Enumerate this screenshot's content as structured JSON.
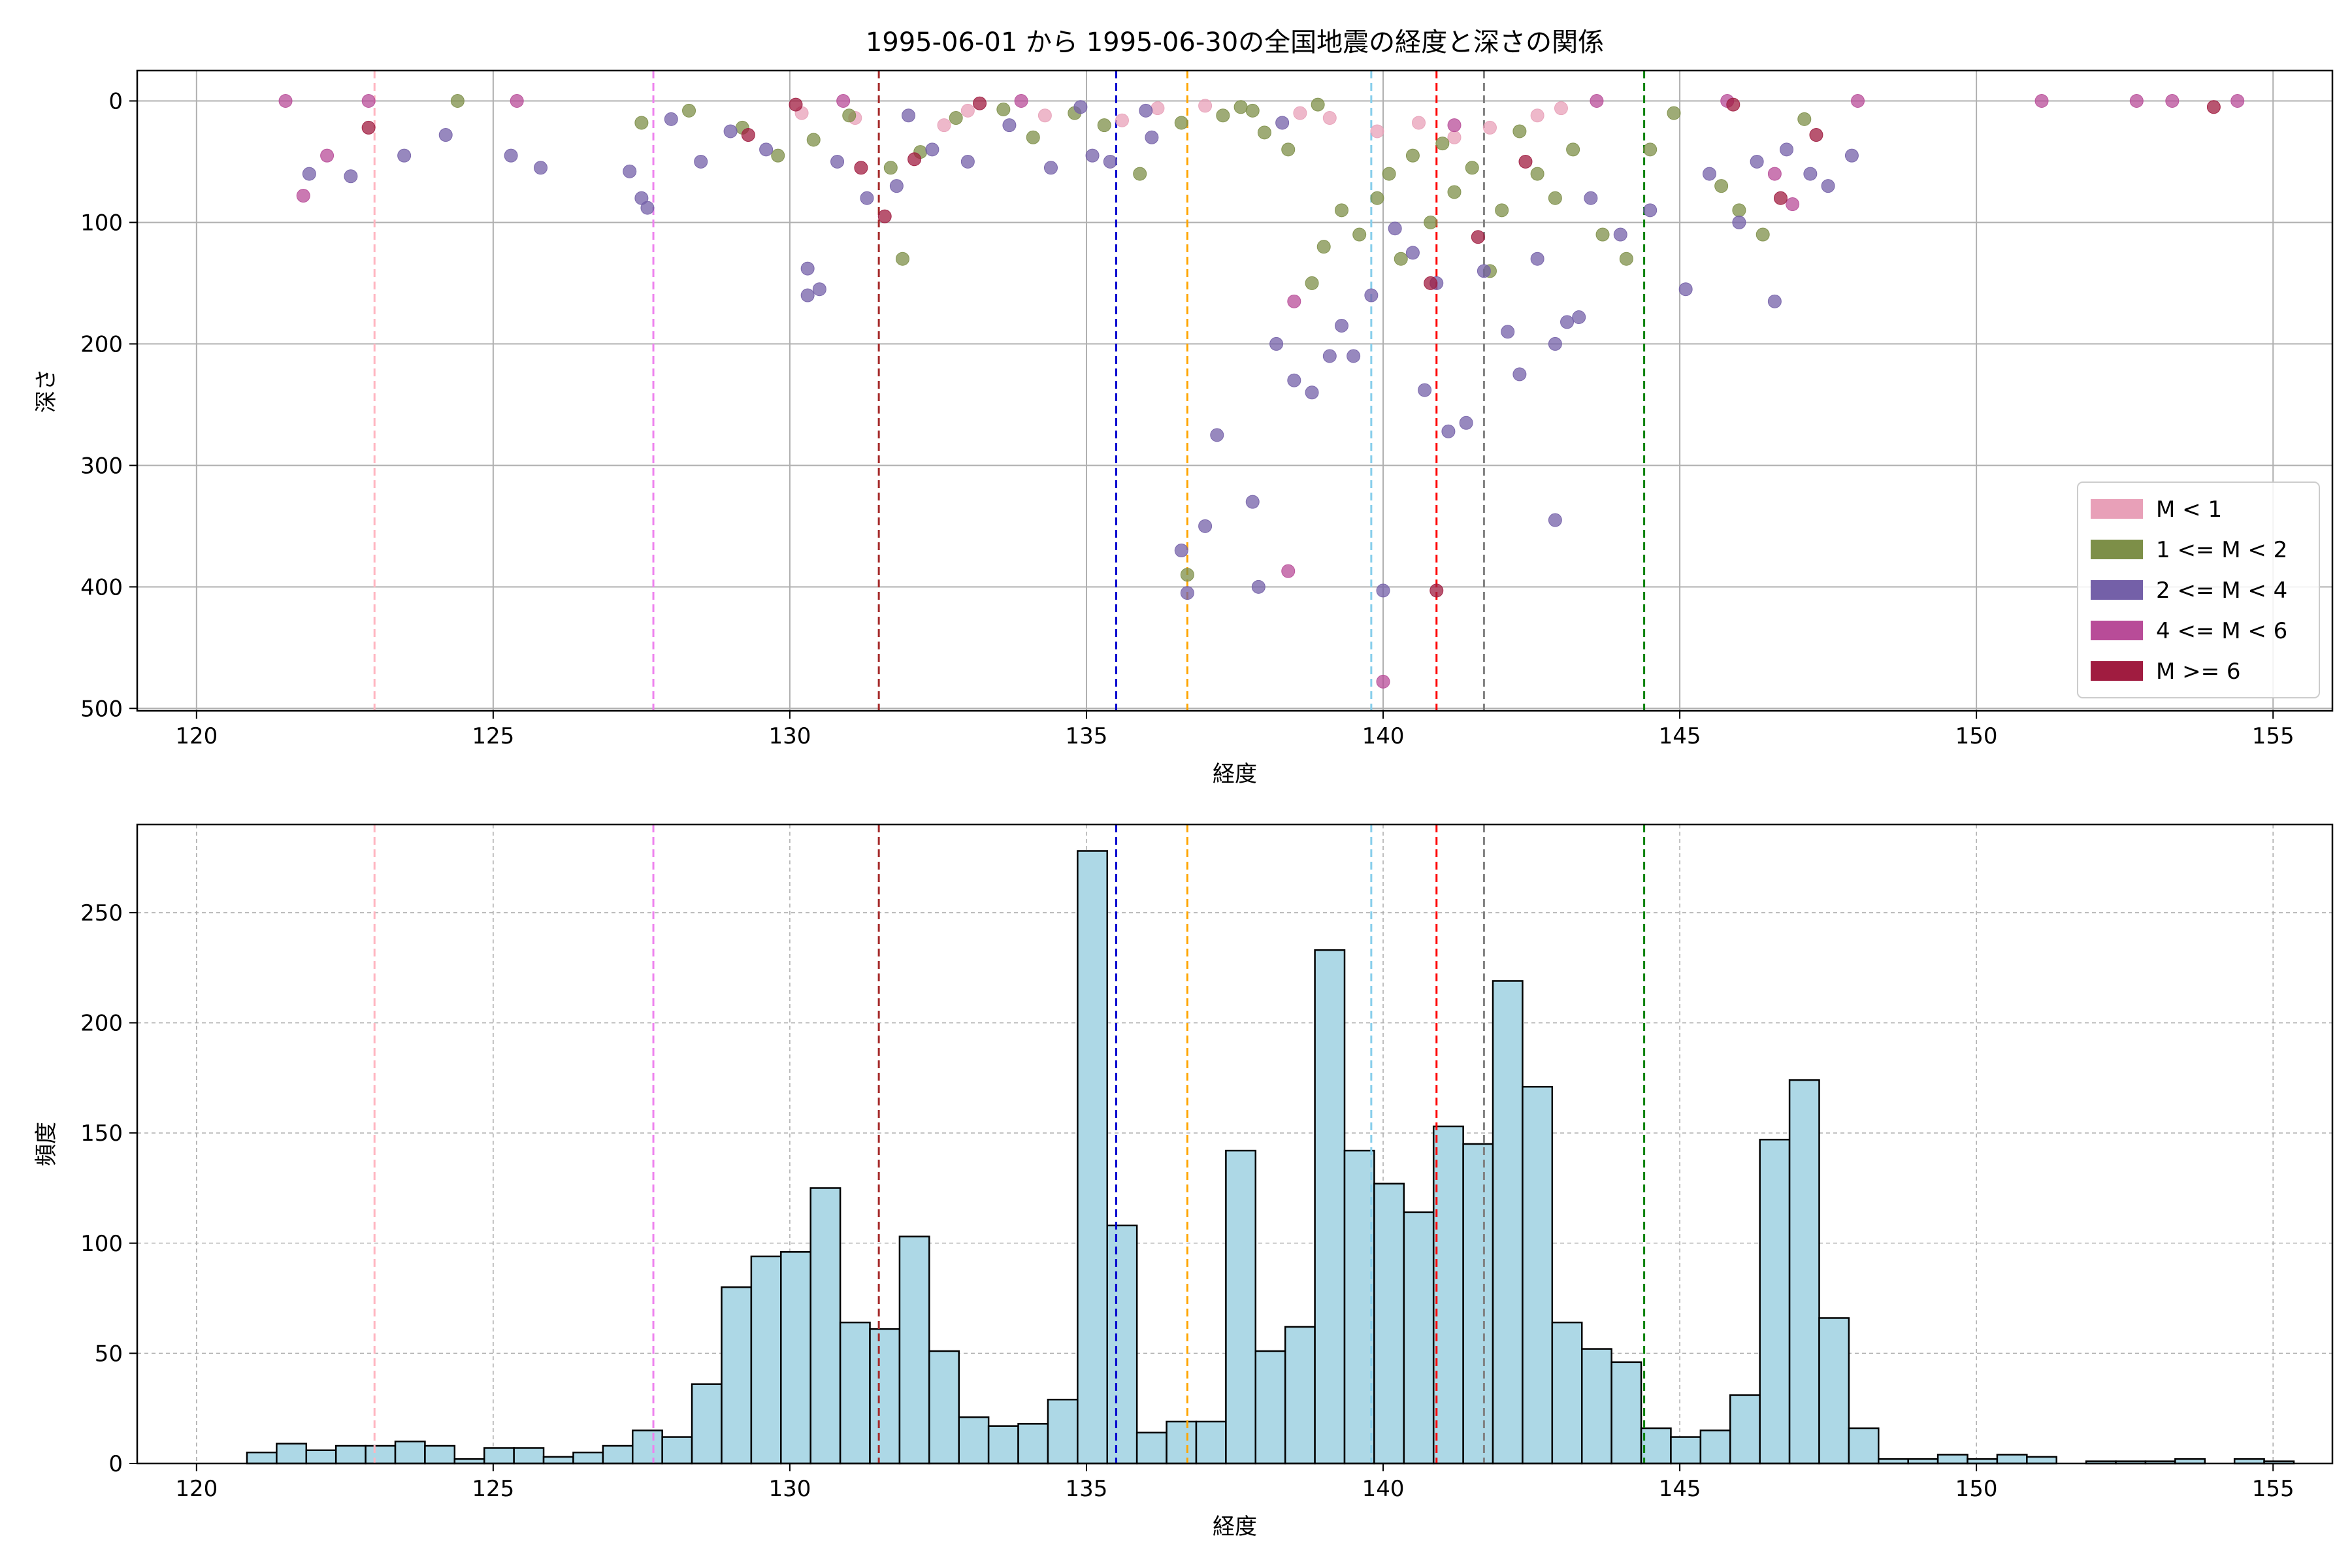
{
  "figure": {
    "title": "1995-06-01 から 1995-06-30の全国地震の経度と深さの関係"
  },
  "chart_data": [
    {
      "type": "scatter",
      "title": "1995-06-01 から 1995-06-30の全国地震の経度と深さの関係",
      "xlabel": "経度",
      "ylabel": "深さ",
      "xlim": [
        119,
        156
      ],
      "ylim": [
        502,
        -25
      ],
      "y_inverted": true,
      "grid": true,
      "x_ticks": [
        120,
        125,
        130,
        135,
        140,
        145,
        150,
        155
      ],
      "y_ticks": [
        0,
        100,
        200,
        300,
        400,
        500
      ],
      "legend_position": "lower-right",
      "legend": [
        {
          "label": "M < 1",
          "color": "#e8a0b8"
        },
        {
          "label": "1 <= M < 2",
          "color": "#7d8f48"
        },
        {
          "label": "2 <= M < 4",
          "color": "#7460a8"
        },
        {
          "label": "4 <= M < 6",
          "color": "#b84c98"
        },
        {
          "label": "M >= 6",
          "color": "#a01c40"
        }
      ],
      "vertical_lines": [
        {
          "x": 123.0,
          "color": "#ffb6c1"
        },
        {
          "x": 127.7,
          "color": "#ee82ee"
        },
        {
          "x": 131.5,
          "color": "#a52a2a"
        },
        {
          "x": 135.5,
          "color": "#0000cd"
        },
        {
          "x": 136.7,
          "color": "#ffa500"
        },
        {
          "x": 139.8,
          "color": "#87ceeb"
        },
        {
          "x": 140.9,
          "color": "#ff0000"
        },
        {
          "x": 141.7,
          "color": "#808080"
        },
        {
          "x": 144.4,
          "color": "#008000"
        }
      ],
      "series": [
        {
          "name": "M < 1",
          "points": [
            [
              130.2,
              10
            ],
            [
              131.1,
              14
            ],
            [
              132.6,
              20
            ],
            [
              133.0,
              8
            ],
            [
              134.3,
              12
            ],
            [
              135.6,
              16
            ],
            [
              138.6,
              10
            ],
            [
              139.1,
              14
            ],
            [
              139.9,
              25
            ],
            [
              140.6,
              18
            ],
            [
              141.2,
              30
            ],
            [
              141.8,
              22
            ],
            [
              142.6,
              12
            ],
            [
              143.0,
              6
            ],
            [
              136.2,
              6
            ],
            [
              137.0,
              4
            ]
          ]
        },
        {
          "name": "1 <= M < 2",
          "points": [
            [
              124.4,
              0
            ],
            [
              127.5,
              18
            ],
            [
              128.3,
              8
            ],
            [
              129.2,
              22
            ],
            [
              129.8,
              45
            ],
            [
              130.4,
              32
            ],
            [
              131.0,
              12
            ],
            [
              131.7,
              55
            ],
            [
              132.2,
              42
            ],
            [
              132.8,
              14
            ],
            [
              133.6,
              7
            ],
            [
              134.1,
              30
            ],
            [
              134.8,
              10
            ],
            [
              135.3,
              20
            ],
            [
              135.9,
              60
            ],
            [
              136.6,
              18
            ],
            [
              137.3,
              12
            ],
            [
              137.6,
              5
            ],
            [
              138.0,
              26
            ],
            [
              138.4,
              40
            ],
            [
              138.8,
              150
            ],
            [
              139.0,
              120
            ],
            [
              139.3,
              90
            ],
            [
              139.6,
              110
            ],
            [
              139.9,
              80
            ],
            [
              140.1,
              60
            ],
            [
              140.3,
              130
            ],
            [
              140.5,
              45
            ],
            [
              140.8,
              100
            ],
            [
              141.0,
              35
            ],
            [
              141.2,
              75
            ],
            [
              141.5,
              55
            ],
            [
              141.8,
              140
            ],
            [
              142.0,
              90
            ],
            [
              142.3,
              25
            ],
            [
              142.6,
              60
            ],
            [
              142.9,
              80
            ],
            [
              143.2,
              40
            ],
            [
              143.7,
              110
            ],
            [
              144.1,
              130
            ],
            [
              144.5,
              40
            ],
            [
              144.9,
              10
            ],
            [
              145.7,
              70
            ],
            [
              146.0,
              90
            ],
            [
              146.4,
              110
            ],
            [
              147.1,
              15
            ],
            [
              131.9,
              130
            ],
            [
              136.7,
              390
            ],
            [
              137.8,
              8
            ],
            [
              138.9,
              3
            ]
          ]
        },
        {
          "name": "2 <= M < 4",
          "points": [
            [
              121.9,
              60
            ],
            [
              122.6,
              62
            ],
            [
              123.5,
              45
            ],
            [
              124.2,
              28
            ],
            [
              125.3,
              45
            ],
            [
              125.8,
              55
            ],
            [
              127.3,
              58
            ],
            [
              127.5,
              80
            ],
            [
              127.6,
              88
            ],
            [
              128.0,
              15
            ],
            [
              128.5,
              50
            ],
            [
              129.0,
              25
            ],
            [
              129.6,
              40
            ],
            [
              130.3,
              138
            ],
            [
              130.3,
              160
            ],
            [
              130.5,
              155
            ],
            [
              130.8,
              50
            ],
            [
              131.3,
              80
            ],
            [
              131.8,
              70
            ],
            [
              132.4,
              40
            ],
            [
              133.0,
              50
            ],
            [
              133.7,
              20
            ],
            [
              134.4,
              55
            ],
            [
              135.1,
              45
            ],
            [
              135.4,
              50
            ],
            [
              136.1,
              30
            ],
            [
              136.6,
              370
            ],
            [
              136.7,
              405
            ],
            [
              137.0,
              350
            ],
            [
              137.2,
              275
            ],
            [
              137.8,
              330
            ],
            [
              137.9,
              400
            ],
            [
              138.2,
              200
            ],
            [
              138.5,
              230
            ],
            [
              138.8,
              240
            ],
            [
              139.1,
              210
            ],
            [
              139.3,
              185
            ],
            [
              139.5,
              210
            ],
            [
              139.8,
              160
            ],
            [
              140.0,
              403
            ],
            [
              140.2,
              105
            ],
            [
              140.5,
              125
            ],
            [
              140.7,
              238
            ],
            [
              140.9,
              150
            ],
            [
              141.1,
              272
            ],
            [
              141.4,
              265
            ],
            [
              141.7,
              140
            ],
            [
              142.1,
              190
            ],
            [
              142.3,
              225
            ],
            [
              142.6,
              130
            ],
            [
              142.9,
              200
            ],
            [
              143.1,
              182
            ],
            [
              143.3,
              178
            ],
            [
              142.9,
              345
            ],
            [
              143.5,
              80
            ],
            [
              144.0,
              110
            ],
            [
              144.5,
              90
            ],
            [
              145.1,
              155
            ],
            [
              145.5,
              60
            ],
            [
              146.0,
              100
            ],
            [
              146.3,
              50
            ],
            [
              146.6,
              165
            ],
            [
              146.8,
              40
            ],
            [
              147.2,
              60
            ],
            [
              147.5,
              70
            ],
            [
              147.9,
              45
            ],
            [
              132.0,
              12
            ],
            [
              134.9,
              5
            ],
            [
              136.0,
              8
            ],
            [
              138.3,
              18
            ]
          ]
        },
        {
          "name": "4 <= M < 6",
          "points": [
            [
              121.8,
              78
            ],
            [
              122.2,
              45
            ],
            [
              138.4,
              387
            ],
            [
              138.5,
              165
            ],
            [
              140.0,
              478
            ],
            [
              141.2,
              20
            ],
            [
              146.6,
              60
            ],
            [
              146.9,
              85
            ],
            [
              130.9,
              0
            ],
            [
              133.9,
              0
            ],
            [
              143.6,
              0
            ],
            [
              145.8,
              0
            ],
            [
              148.0,
              0
            ],
            [
              151.1,
              0
            ],
            [
              152.7,
              0
            ],
            [
              153.3,
              0
            ],
            [
              154.4,
              0
            ],
            [
              121.5,
              0
            ],
            [
              122.9,
              0
            ],
            [
              125.4,
              0
            ]
          ]
        },
        {
          "name": "M >= 6",
          "points": [
            [
              122.9,
              22
            ],
            [
              131.2,
              55
            ],
            [
              131.6,
              95
            ],
            [
              132.1,
              48
            ],
            [
              140.9,
              403
            ],
            [
              140.8,
              150
            ],
            [
              141.6,
              112
            ],
            [
              142.4,
              50
            ],
            [
              129.3,
              28
            ],
            [
              146.7,
              80
            ],
            [
              147.3,
              28
            ],
            [
              154.0,
              5
            ],
            [
              130.1,
              3
            ],
            [
              133.2,
              2
            ],
            [
              145.9,
              3
            ]
          ]
        }
      ]
    },
    {
      "type": "bar",
      "title": "",
      "xlabel": "経度",
      "ylabel": "頻度",
      "xlim": [
        119,
        156
      ],
      "ylim": [
        0,
        290
      ],
      "grid": true,
      "x_ticks": [
        120,
        125,
        130,
        135,
        140,
        145,
        150,
        155
      ],
      "y_ticks": [
        0,
        50,
        100,
        150,
        200,
        250
      ],
      "bar_color": "#add8e6",
      "bin_start": 120.85,
      "bin_width": 0.5,
      "values": [
        5,
        9,
        6,
        8,
        8,
        10,
        8,
        2,
        7,
        7,
        3,
        5,
        8,
        15,
        12,
        36,
        80,
        94,
        96,
        125,
        64,
        61,
        103,
        51,
        21,
        17,
        18,
        29,
        278,
        108,
        14,
        19,
        19,
        142,
        51,
        62,
        233,
        142,
        127,
        114,
        153,
        145,
        219,
        171,
        64,
        52,
        46,
        16,
        12,
        15,
        31,
        147,
        174,
        66,
        16,
        2,
        2,
        4,
        2,
        4,
        3,
        0,
        1,
        1,
        1,
        2,
        0,
        2,
        1,
        0
      ],
      "vertical_lines": [
        {
          "x": 123.0,
          "color": "#ffb6c1"
        },
        {
          "x": 127.7,
          "color": "#ee82ee"
        },
        {
          "x": 131.5,
          "color": "#a52a2a"
        },
        {
          "x": 135.5,
          "color": "#0000cd"
        },
        {
          "x": 136.7,
          "color": "#ffa500"
        },
        {
          "x": 139.8,
          "color": "#87ceeb"
        },
        {
          "x": 140.9,
          "color": "#ff0000"
        },
        {
          "x": 141.7,
          "color": "#808080"
        },
        {
          "x": 144.4,
          "color": "#008000"
        }
      ]
    }
  ]
}
